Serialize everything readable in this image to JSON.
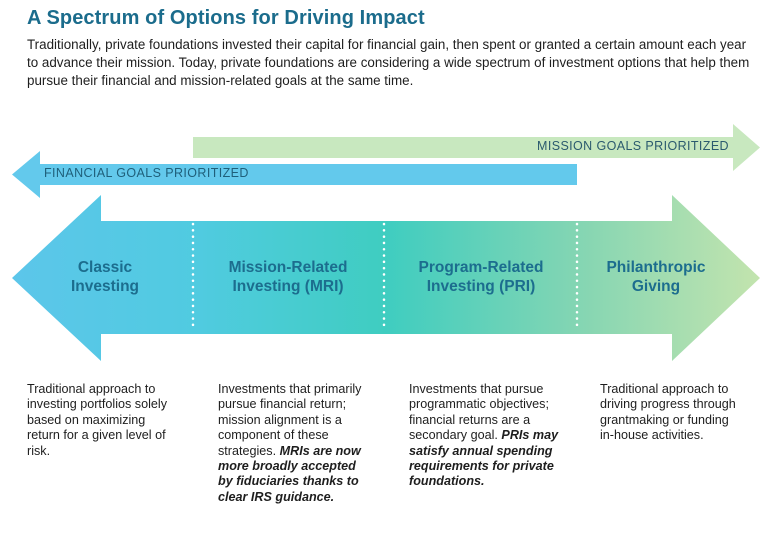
{
  "header": {
    "title": "A Spectrum of Options for Driving Impact",
    "intro": "Traditionally, private foundations invested their capital for financial gain, then spent or granted a certain amount each year to advance their mission. Today, private foundations are considering a wide spectrum of investment options that help them pursue their financial and mission-related goals at the same time."
  },
  "arrows": {
    "mission_label": "MISSION GOALS PRIORITIZED",
    "financial_label": "FINANCIAL GOALS PRIORITIZED"
  },
  "categories": [
    {
      "title_line1": "Classic",
      "title_line2": "Investing",
      "description": "Traditional approach to investing portfolios solely based on maximizing return for a given level of risk.",
      "emphasis": ""
    },
    {
      "title_line1": "Mission-Related",
      "title_line2": "Investing (MRI)",
      "description": "Investments that primarily pursue financial return; mission alignment is a component of these strategies.",
      "emphasis": "MRIs are now more broadly accepted by fiduciaries thanks to clear IRS guidance."
    },
    {
      "title_line1": "Program-Related",
      "title_line2": "Investing (PRI)",
      "description": "Investments that pursue programmatic objectives; financial returns are a secondary goal.",
      "emphasis": "PRIs may satisfy annual spending requirements for private foundations."
    },
    {
      "title_line1": "Philanthropic",
      "title_line2": "Giving",
      "description": "Traditional approach to driving progress through grantmaking or funding in-house activities.",
      "emphasis": ""
    }
  ],
  "colors": {
    "title": "#1b6c8c",
    "category_title": "#1c6d8e",
    "blue": "#5cc6ea",
    "teal": "#3fcdc0",
    "green": "#bfe3ad",
    "mission_arrow": "#c8e8bf",
    "financial_arrow": "#63c9ec"
  }
}
